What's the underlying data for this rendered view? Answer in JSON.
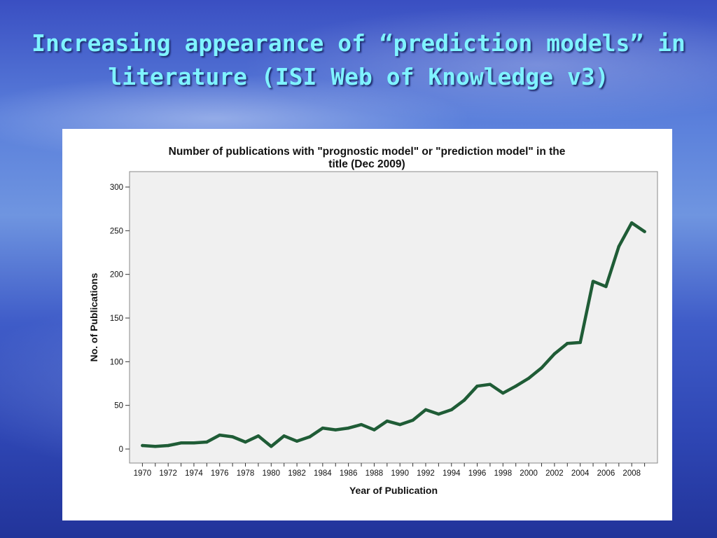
{
  "slide": {
    "title_line1": "Increasing appearance of “prediction models” in",
    "title_line2": "literature (ISI Web of Knowledge v3)"
  },
  "colors": {
    "line": "#1f5c36",
    "plot_bg": "#f0f0f0"
  },
  "chart_data": {
    "type": "line",
    "title_line1": "Number of publications with \"prognostic model\" or \"prediction model\" in the",
    "title_line2": "title (Dec 2009)",
    "xlabel": "Year of Publication",
    "ylabel": "No. of Publications",
    "ylim": [
      0,
      300
    ],
    "xlim": [
      1969,
      2010
    ],
    "yticks": [
      0,
      50,
      100,
      150,
      200,
      250,
      300
    ],
    "xticks": [
      1970,
      1972,
      1974,
      1976,
      1978,
      1980,
      1982,
      1984,
      1986,
      1988,
      1990,
      1992,
      1994,
      1996,
      1998,
      2000,
      2002,
      2004,
      2006,
      2008
    ],
    "grid": false,
    "legend": "none",
    "series": [
      {
        "x": [
          1970,
          1971,
          1972,
          1973,
          1974,
          1975,
          1976,
          1977,
          1978,
          1979,
          1980,
          1981,
          1982,
          1983,
          1984,
          1985,
          1986,
          1987,
          1988,
          1989,
          1990,
          1991,
          1992,
          1993,
          1994,
          1995,
          1996,
          1997,
          1998,
          1999,
          2000,
          2001,
          2002,
          2003,
          2004,
          2005,
          2006,
          2007,
          2008,
          2009
        ],
        "y": [
          4,
          3,
          4,
          7,
          7,
          8,
          16,
          14,
          8,
          15,
          3,
          15,
          9,
          14,
          24,
          22,
          24,
          28,
          22,
          32,
          28,
          33,
          45,
          40,
          45,
          56,
          72,
          74,
          64,
          72,
          81,
          93,
          109,
          121,
          122,
          192,
          186,
          232,
          259,
          249
        ]
      }
    ]
  }
}
